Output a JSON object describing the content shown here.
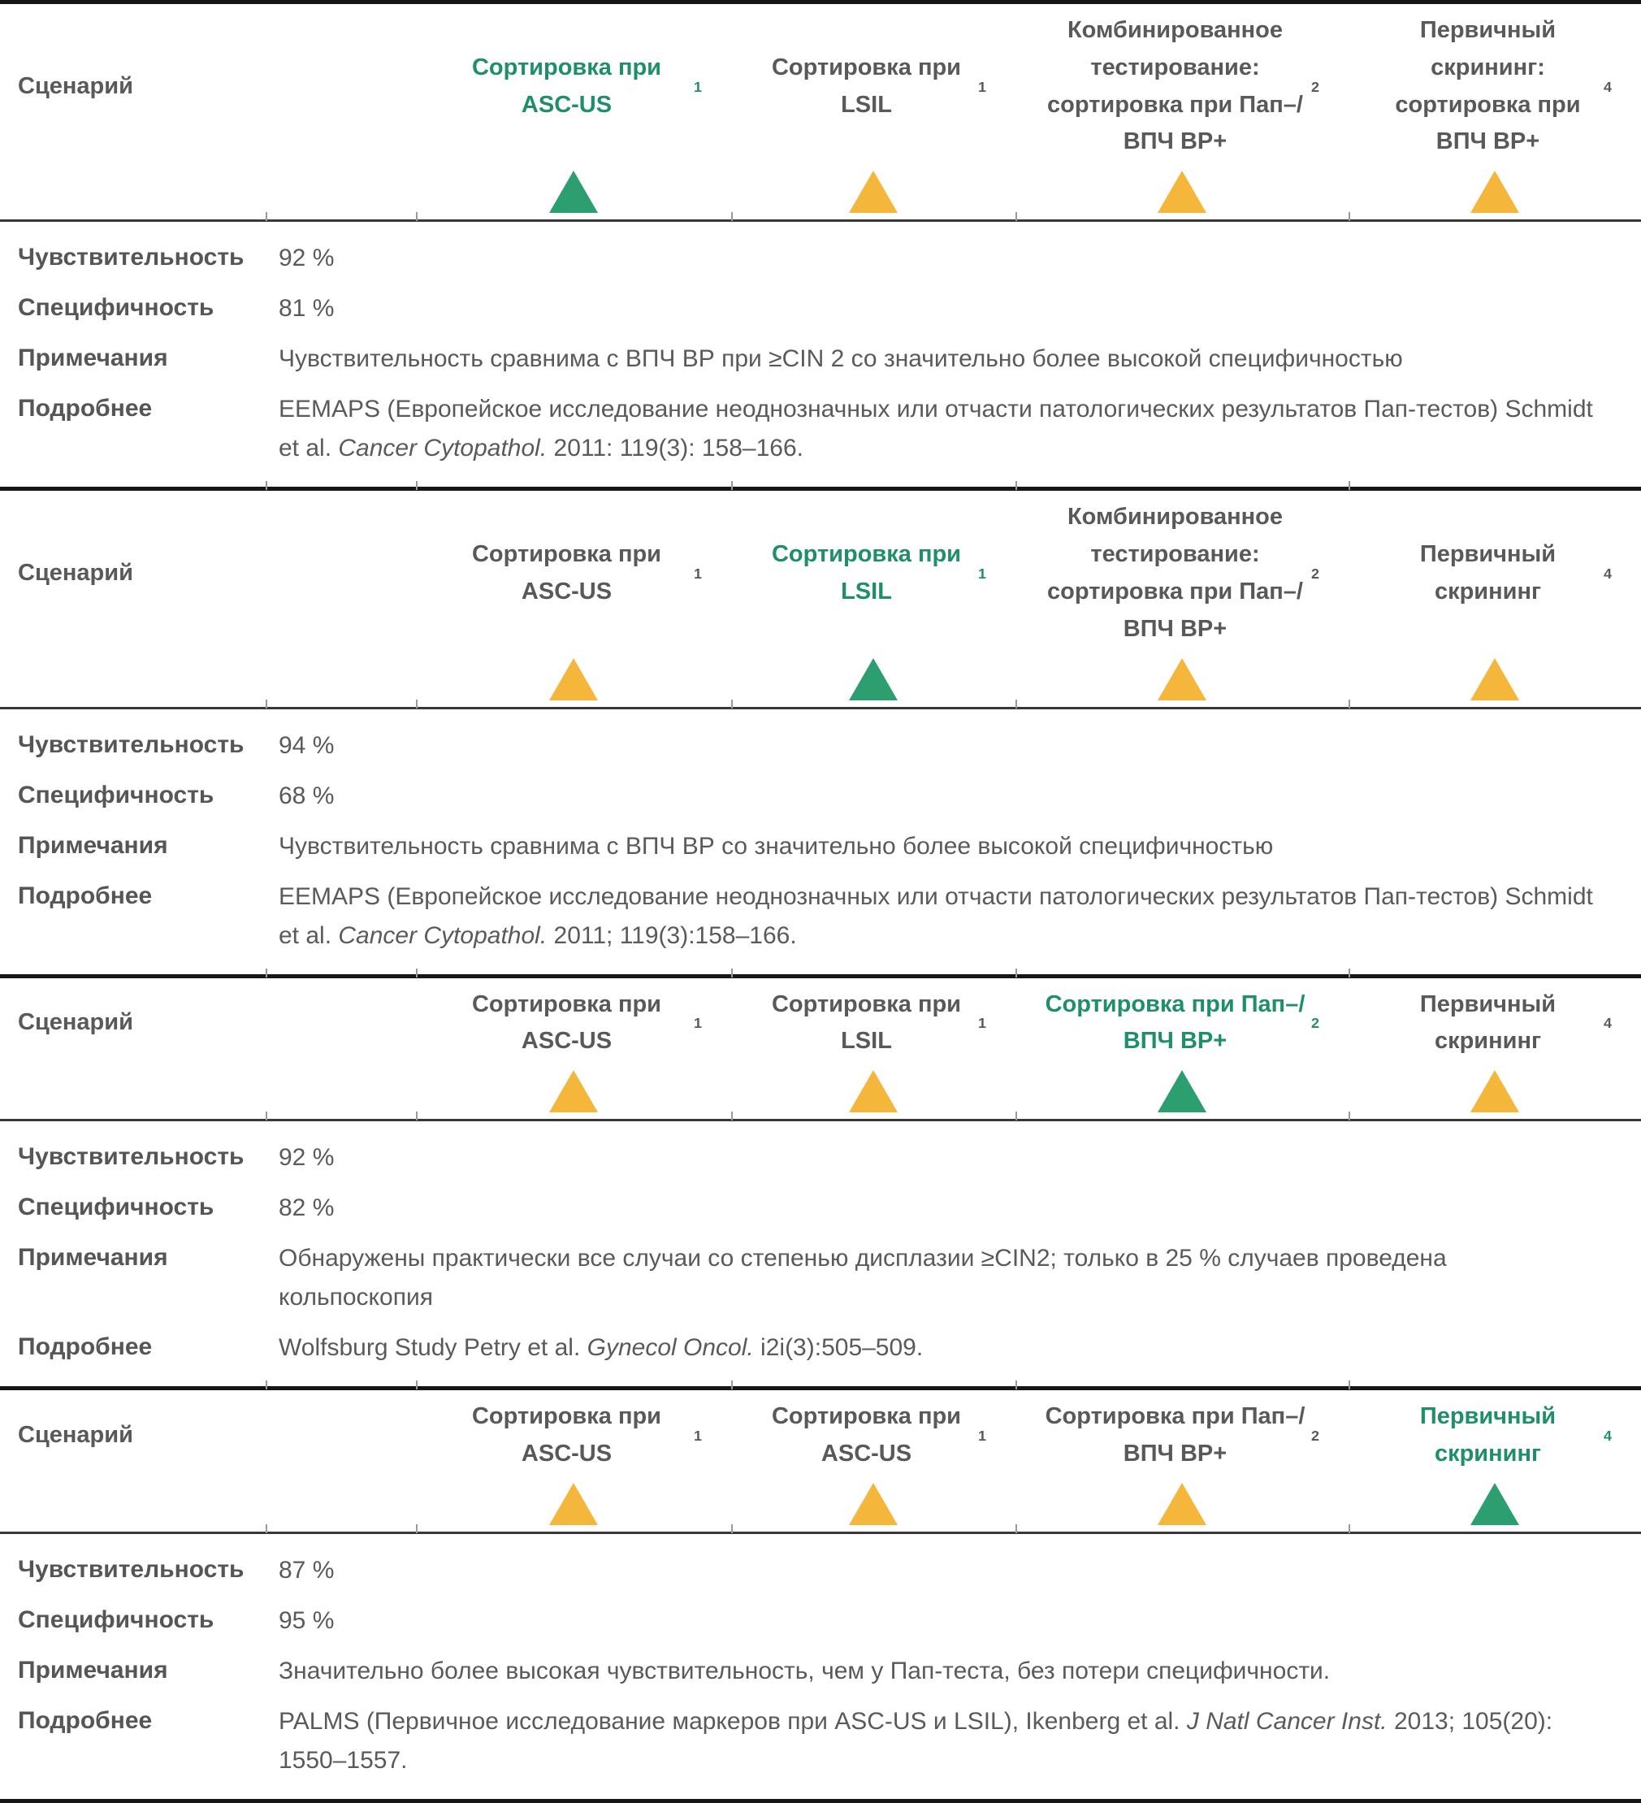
{
  "colors": {
    "green_text": "#1e8f67",
    "green_triangle": "#2d9e6f",
    "amber_triangle": "#f5b63c",
    "text_gray": "#595959"
  },
  "labels": {
    "scenario": "Сценарий",
    "sensitivity": "Чувствительность",
    "specificity": "Специфичность",
    "notes": "Примечания",
    "details": "Подробнее"
  },
  "sections": [
    {
      "scenarios": [
        {
          "title": "Сортировка при ASC-US",
          "sup": "1",
          "active": true,
          "marker": "green-triangle"
        },
        {
          "title": "Сортировка при LSIL",
          "sup": "1",
          "active": false,
          "marker": "amber-triangle"
        },
        {
          "title": "Комбинированное тестирование: сортировка при Пап–/ВПЧ ВР+",
          "sup": "2",
          "active": false,
          "marker": "amber-triangle"
        },
        {
          "title": "Первичный скрининг: сортировка при ВПЧ ВР+",
          "sup": "4",
          "active": false,
          "marker": "amber-triangle"
        }
      ],
      "sensitivity": "92 %",
      "specificity": "81 %",
      "notes": "Чувствительность сравнима с ВПЧ ВР при ≥CIN 2 со значительно более высокой специфичностью",
      "details_pre": "EEMAPS (Европейское исследование неоднозначных или отчасти патологических результатов Пап-тестов) Schmidt et al. ",
      "details_italic": "Cancer Cytopathol.",
      "details_post": " 2011: 119(3): 158–166."
    },
    {
      "scenarios": [
        {
          "title": "Сортировка при ASC-US",
          "sup": "1",
          "active": false,
          "marker": "amber-triangle"
        },
        {
          "title": "Сортировка при LSIL",
          "sup": "1",
          "active": true,
          "marker": "green-triangle"
        },
        {
          "title": "Комбинированное тестирование: сортировка при Пап–/ВПЧ ВР+",
          "sup": "2",
          "active": false,
          "marker": "amber-triangle"
        },
        {
          "title": "Первичный скрининг",
          "sup": "4",
          "active": false,
          "marker": "amber-triangle"
        }
      ],
      "sensitivity": "94 %",
      "specificity": "68 %",
      "notes": "Чувствительность сравнима с ВПЧ ВР со значительно более высокой специфичностью",
      "details_pre": "EEMAPS (Европейское исследование неоднозначных или отчасти патологических результатов Пап-тестов) Schmidt et al. ",
      "details_italic": "Cancer Cytopathol.",
      "details_post": " 2011; 119(3):158–166."
    },
    {
      "scenarios": [
        {
          "title": "Сортировка при ASC-US",
          "sup": "1",
          "active": false,
          "marker": "amber-triangle"
        },
        {
          "title": "Сортировка при LSIL",
          "sup": "1",
          "active": false,
          "marker": "amber-triangle"
        },
        {
          "title": "Сортировка при Пап–/ВПЧ ВР+",
          "sup": "2",
          "active": true,
          "marker": "green-triangle"
        },
        {
          "title": "Первичный скрининг",
          "sup": "4",
          "active": false,
          "marker": "amber-triangle"
        }
      ],
      "sensitivity": "92 %",
      "specificity": "82 %",
      "notes": "Обнаружены практически все случаи со степенью дисплазии ≥CIN2; только в 25 % случаев проведена кольпоскопия",
      "details_pre": "Wolfsburg Study Petry et al. ",
      "details_italic": "Gynecol Oncol.",
      "details_post": " i2i(3):505–509."
    },
    {
      "scenarios": [
        {
          "title": "Сортировка при ASC-US",
          "sup": "1",
          "active": false,
          "marker": "amber-triangle"
        },
        {
          "title": "Сортировка при ASC-US",
          "sup": "1",
          "active": false,
          "marker": "amber-triangle"
        },
        {
          "title": "Сортировка при Пап–/ВПЧ ВР+",
          "sup": "2",
          "active": false,
          "marker": "amber-triangle"
        },
        {
          "title": "Первичный скрининг",
          "sup": "4",
          "active": true,
          "marker": "green-triangle"
        }
      ],
      "sensitivity": "87 %",
      "specificity": "95 %",
      "notes": "Значительно более высокая чувствительность, чем у Пап-теста, без потери специфичности.",
      "details_pre": "PALMS (Первичное исследование маркеров при ASC-US и LSIL), Ikenberg et al. ",
      "details_italic": "J Natl Cancer Inst.",
      "details_post": " 2013; 105(20): 1550–1557."
    }
  ]
}
